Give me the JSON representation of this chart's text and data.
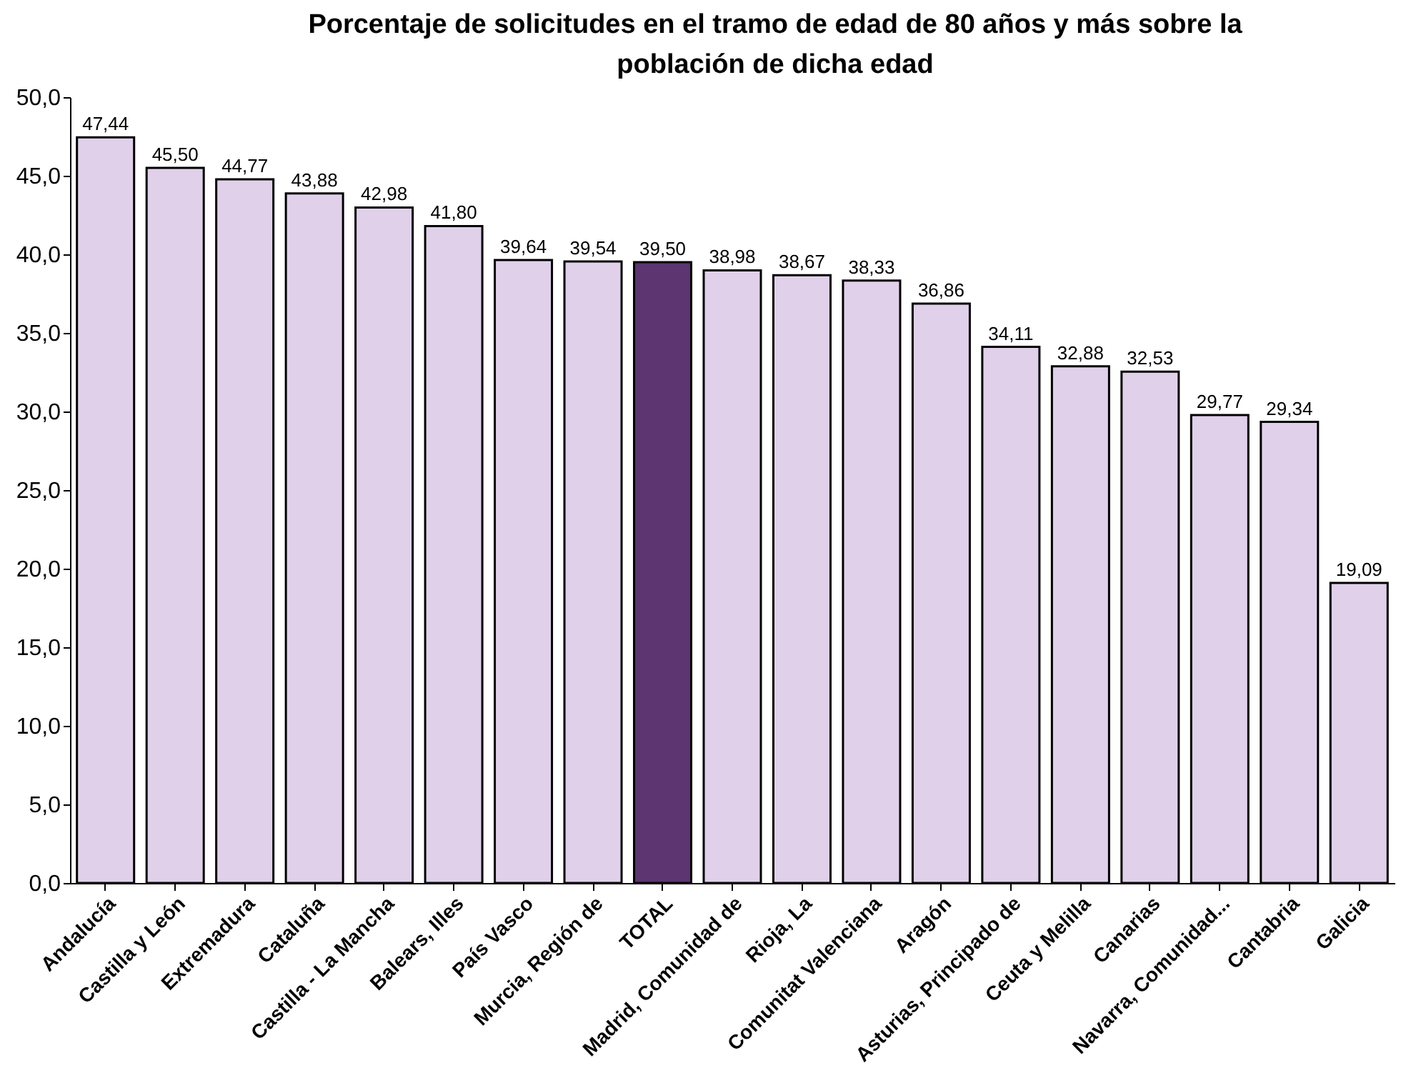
{
  "chart_data": {
    "type": "bar",
    "title": "Porcentaje de solicitudes en el tramo de edad de 80 años y más sobre la población  de dicha edad",
    "categories": [
      "Andalucía",
      "Castilla y León",
      "Extremadura",
      "Cataluña",
      "Castilla - La Mancha",
      "Balears, Illes",
      "País Vasco",
      "Murcia, Región de",
      "TOTAL",
      "Madrid, Comunidad de",
      "Rioja, La",
      "Comunitat Valenciana",
      "Aragón",
      "Asturias, Principado de",
      "Ceuta y Melilla",
      "Canarias",
      "Navarra, Comunidad...",
      "Cantabria",
      "Galicia"
    ],
    "values": [
      47.44,
      45.5,
      44.77,
      43.88,
      42.98,
      41.8,
      39.64,
      39.54,
      39.5,
      38.98,
      38.67,
      38.33,
      36.86,
      34.11,
      32.88,
      32.53,
      29.77,
      29.34,
      19.09
    ],
    "value_labels": [
      "47,44",
      "45,50",
      "44,77",
      "43,88",
      "42,98",
      "41,80",
      "39,64",
      "39,54",
      "39,50",
      "38,98",
      "38,67",
      "38,33",
      "36,86",
      "34,11",
      "32,88",
      "32,53",
      "29,77",
      "29,34",
      "19,09"
    ],
    "colors": [
      "#e0d0ea",
      "#e0d0ea",
      "#e0d0ea",
      "#e0d0ea",
      "#e0d0ea",
      "#e0d0ea",
      "#e0d0ea",
      "#e0d0ea",
      "#5c3571",
      "#e0d0ea",
      "#e0d0ea",
      "#e0d0ea",
      "#e0d0ea",
      "#e0d0ea",
      "#e0d0ea",
      "#e0d0ea",
      "#e0d0ea",
      "#e0d0ea",
      "#e0d0ea"
    ],
    "ylim": [
      0,
      50
    ],
    "yticks": [
      {
        "value": 0,
        "label": "0,0"
      },
      {
        "value": 5,
        "label": "5,0"
      },
      {
        "value": 10,
        "label": "10,0"
      },
      {
        "value": 15,
        "label": "15,0"
      },
      {
        "value": 20,
        "label": "20,0"
      },
      {
        "value": 25,
        "label": "25,0"
      },
      {
        "value": 30,
        "label": "30,0"
      },
      {
        "value": 35,
        "label": "35,0"
      },
      {
        "value": 40,
        "label": "40,0"
      },
      {
        "value": 45,
        "label": "45,0"
      },
      {
        "value": 50,
        "label": "50,0"
      }
    ],
    "grid": false,
    "legend": false
  }
}
